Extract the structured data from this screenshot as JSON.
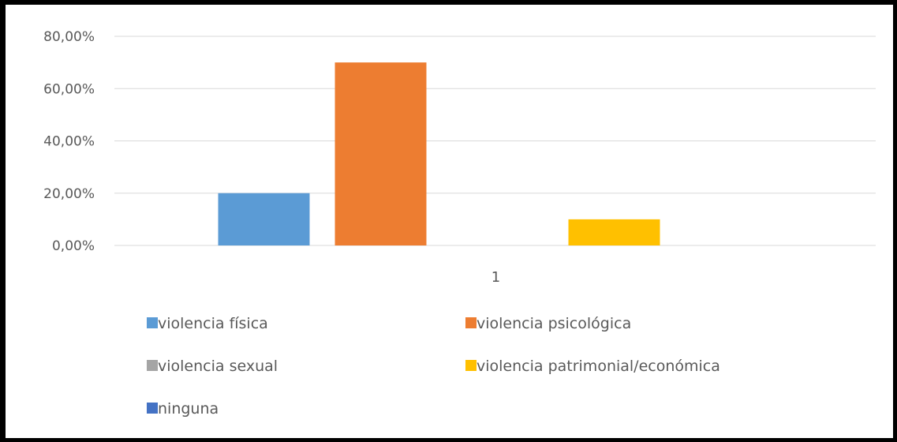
{
  "chart_data": {
    "type": "bar",
    "categories": [
      "1"
    ],
    "series": [
      {
        "name": "violencia física",
        "values": [
          0.2
        ],
        "color": "#5B9BD5"
      },
      {
        "name": "violencia psicológica",
        "values": [
          0.7
        ],
        "color": "#ED7D31"
      },
      {
        "name": "violencia sexual",
        "values": [
          0.0
        ],
        "color": "#A5A5A5"
      },
      {
        "name": "violencia patrimonial/económica",
        "values": [
          0.1
        ],
        "color": "#FFC000"
      },
      {
        "name": "ninguna",
        "values": [
          0.0
        ],
        "color": "#4472C4"
      }
    ],
    "y_ticks": [
      "0,00%",
      "20,00%",
      "40,00%",
      "60,00%",
      "80,00%"
    ],
    "ylim": [
      0,
      0.8
    ],
    "title": "",
    "xlabel": "",
    "ylabel": "",
    "grid": true,
    "legend_position": "bottom"
  }
}
